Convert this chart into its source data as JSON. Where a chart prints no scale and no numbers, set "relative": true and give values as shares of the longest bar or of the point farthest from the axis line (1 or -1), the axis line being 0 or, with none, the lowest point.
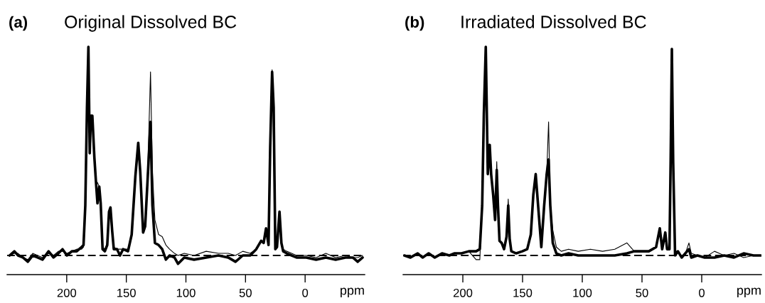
{
  "chart_data": [
    {
      "type": "line",
      "title": "Original Dissolved BC",
      "annotations": [
        "(a)"
      ],
      "xlabel": "ppm",
      "relative": true,
      "xlim": [
        250,
        -50
      ],
      "xticks": [
        200,
        150,
        100,
        50,
        0
      ],
      "grid": false,
      "legend": false,
      "ref_lines": [
        {
          "axis": "y",
          "value": 0,
          "label": null,
          "color": "#000000",
          "line_style": "dashed"
        }
      ],
      "series": [
        {
          "color": "#000000",
          "x": [
            247.9,
            243.9,
            240.8,
            236.7,
            232.6,
            228.5,
            224.4,
            220.3,
            215.2,
            211.1,
            207.0,
            203.5,
            199.8,
            195.7,
            191.6,
            187.5,
            185.9,
            184.4,
            183.0,
            181.8,
            180.7,
            179.7,
            178.5,
            176.8,
            175.2,
            174.2,
            172.7,
            171.5,
            169.9,
            168.0,
            166.0,
            164.5,
            163.3,
            161.9,
            160.5,
            157.8,
            155.3,
            152.7,
            148.6,
            145.5,
            142.4,
            140.0,
            138.3,
            135.9,
            134.2,
            131.8,
            129.7,
            128.1,
            126.0,
            122.9,
            119.9,
            116.8,
            113.7,
            109.6,
            106.6,
            101.4,
            93.2,
            83.0,
            72.7,
            64.5,
            58.4,
            52.3,
            46.1,
            41.0,
            36.9,
            34.8,
            32.8,
            30.7,
            29.3,
            27.7,
            26.4,
            25.0,
            23.6,
            21.5,
            19.9,
            18.4,
            15.4,
            11.3,
            7.2,
            -1.0,
            -9.2,
            -17.4,
            -25.6,
            -33.8,
            -40.0,
            -44.1,
            -48.2
          ],
          "values": [
            0.0,
            0.01,
            0.01,
            -0.01,
            -0.02,
            0.01,
            0.0,
            -0.01,
            0.02,
            0.0,
            0.02,
            0.02,
            0.01,
            0.02,
            0.03,
            0.03,
            0.04,
            0.22,
            0.7,
            0.98,
            0.5,
            0.66,
            0.66,
            0.48,
            0.35,
            0.35,
            0.33,
            0.26,
            0.04,
            0.03,
            0.06,
            0.21,
            0.23,
            0.12,
            0.04,
            0.03,
            0.03,
            0.03,
            0.03,
            0.1,
            0.38,
            0.54,
            0.4,
            0.12,
            0.16,
            0.45,
            0.88,
            0.4,
            0.17,
            0.1,
            0.09,
            0.05,
            0.03,
            0.01,
            0.0,
            0.01,
            0.0,
            0.02,
            0.01,
            0.01,
            0.0,
            0.02,
            0.01,
            0.03,
            0.07,
            0.06,
            0.13,
            0.05,
            0.52,
            0.89,
            0.71,
            0.03,
            0.04,
            0.21,
            0.06,
            0.03,
            0.02,
            0.01,
            0.0,
            0.0,
            -0.01,
            0.01,
            -0.01,
            0.0,
            -0.01,
            -0.01,
            0.0
          ]
        },
        {
          "color": "#000000",
          "x": [
            247.9,
            243.9,
            240.8,
            236.7,
            232.6,
            228.5,
            224.4,
            220.3,
            215.2,
            211.1,
            207.0,
            203.5,
            199.8,
            195.7,
            191.6,
            187.5,
            185.9,
            184.4,
            183.0,
            181.8,
            180.7,
            179.7,
            178.5,
            176.8,
            175.2,
            174.2,
            172.7,
            171.5,
            169.9,
            168.0,
            166.0,
            164.5,
            163.3,
            161.9,
            160.5,
            157.8,
            155.3,
            152.7,
            148.6,
            145.5,
            142.4,
            140.0,
            138.3,
            135.9,
            134.2,
            131.8,
            129.7,
            128.1,
            126.0,
            122.9,
            119.9,
            116.8,
            113.7,
            109.6,
            106.6,
            101.4,
            93.2,
            83.0,
            72.7,
            64.5,
            58.4,
            52.3,
            46.1,
            41.0,
            36.9,
            34.8,
            32.8,
            30.7,
            29.3,
            27.7,
            26.4,
            25.0,
            23.6,
            21.5,
            19.9,
            18.4,
            15.4,
            11.3,
            7.2,
            -1.0,
            -9.2,
            -17.4,
            -25.6,
            -33.8,
            -40.0,
            -44.1,
            -48.2
          ],
          "values": [
            0.0,
            0.02,
            0.0,
            -0.01,
            -0.03,
            0.0,
            -0.01,
            -0.02,
            0.02,
            -0.01,
            0.01,
            0.03,
            0.0,
            0.02,
            0.02,
            0.04,
            0.05,
            0.24,
            0.71,
            1.0,
            0.49,
            0.67,
            0.67,
            0.47,
            0.33,
            0.25,
            0.33,
            0.25,
            0.03,
            0.02,
            0.05,
            0.21,
            0.23,
            0.12,
            0.03,
            0.03,
            0.0,
            0.03,
            0.02,
            0.1,
            0.38,
            0.54,
            0.4,
            0.11,
            0.14,
            0.4,
            0.64,
            0.24,
            0.06,
            0.05,
            0.03,
            -0.02,
            0.0,
            -0.01,
            -0.04,
            -0.01,
            -0.02,
            -0.01,
            0.0,
            -0.01,
            -0.03,
            0.0,
            0.0,
            0.03,
            0.07,
            0.06,
            0.13,
            0.05,
            0.52,
            0.88,
            0.71,
            0.03,
            0.04,
            0.21,
            0.06,
            0.02,
            0.01,
            0.0,
            -0.01,
            -0.01,
            -0.02,
            -0.01,
            -0.02,
            -0.01,
            -0.01,
            -0.03,
            -0.01
          ]
        }
      ]
    },
    {
      "type": "line",
      "title": "Irradiated Dissolved BC",
      "annotations": [
        "(b)"
      ],
      "xlabel": "ppm",
      "relative": true,
      "xlim": [
        250,
        -50
      ],
      "xticks": [
        200,
        150,
        100,
        50,
        0
      ],
      "grid": false,
      "legend": false,
      "ref_lines": [
        {
          "axis": "y",
          "value": 0,
          "label": null,
          "color": "#000000",
          "line_style": "dashed"
        }
      ],
      "series": [
        {
          "color": "#000000",
          "x": [
            249.0,
            243.9,
            237.8,
            233.7,
            228.6,
            223.5,
            217.4,
            211.3,
            207.2,
            201.1,
            195.0,
            188.9,
            185.8,
            183.8,
            182.4,
            180.8,
            179.1,
            177.5,
            176.3,
            174.6,
            173.0,
            171.6,
            170.6,
            169.3,
            167.5,
            165.5,
            163.4,
            162.0,
            160.8,
            159.4,
            155.3,
            150.2,
            146.1,
            143.1,
            141.0,
            139.0,
            137.0,
            134.3,
            131.9,
            129.8,
            128.2,
            126.8,
            124.7,
            121.7,
            117.6,
            111.5,
            103.4,
            93.2,
            83.0,
            72.8,
            62.6,
            56.5,
            50.4,
            44.3,
            41.2,
            38.2,
            35.1,
            33.1,
            30.5,
            29.0,
            27.0,
            26.0,
            25.0,
            23.9,
            22.3,
            19.9,
            16.8,
            13.7,
            10.7,
            8.7,
            3.6,
            -2.5,
            -10.7,
            -18.8,
            -27.0,
            -35.1,
            -43.3,
            -49.4
          ],
          "values": [
            0.0,
            -0.01,
            0.01,
            -0.01,
            0.01,
            -0.01,
            0.01,
            0.0,
            0.01,
            0.01,
            0.02,
            -0.02,
            -0.02,
            0.24,
            0.68,
            0.98,
            0.39,
            0.53,
            0.39,
            0.29,
            0.17,
            0.45,
            0.24,
            0.07,
            0.06,
            0.03,
            0.09,
            0.27,
            0.08,
            0.02,
            0.01,
            0.02,
            0.03,
            0.1,
            0.29,
            0.39,
            0.24,
            0.04,
            0.24,
            0.39,
            0.64,
            0.24,
            0.12,
            0.04,
            0.02,
            0.03,
            0.02,
            0.03,
            0.02,
            0.03,
            0.06,
            0.02,
            0.02,
            0.02,
            0.03,
            0.04,
            0.13,
            0.03,
            0.11,
            0.03,
            0.03,
            0.46,
            0.99,
            0.45,
            0.02,
            0.02,
            -0.01,
            0.01,
            0.06,
            0.01,
            0.0,
            -0.01,
            0.02,
            0.0,
            0.01,
            -0.01,
            0.0,
            0.0
          ]
        },
        {
          "color": "#000000",
          "x": [
            249.0,
            243.9,
            237.8,
            233.7,
            228.6,
            223.5,
            217.4,
            211.3,
            207.2,
            201.1,
            195.0,
            188.9,
            185.8,
            183.8,
            182.4,
            180.8,
            179.1,
            177.5,
            176.3,
            174.6,
            173.0,
            171.6,
            170.6,
            169.3,
            167.5,
            165.5,
            163.4,
            162.0,
            160.8,
            159.4,
            155.3,
            150.2,
            146.1,
            143.1,
            141.0,
            139.0,
            137.0,
            134.3,
            131.9,
            129.8,
            128.2,
            126.8,
            124.7,
            121.7,
            117.6,
            111.5,
            103.4,
            93.2,
            83.0,
            72.8,
            62.6,
            56.5,
            50.4,
            44.3,
            41.2,
            38.2,
            35.1,
            33.1,
            30.5,
            29.0,
            27.0,
            26.0,
            25.0,
            23.9,
            22.3,
            19.9,
            16.8,
            13.7,
            10.7,
            8.7,
            3.6,
            -2.5,
            -10.7,
            -18.8,
            -27.0,
            -35.1,
            -43.3,
            -49.4
          ],
          "values": [
            0.0,
            -0.01,
            0.01,
            -0.01,
            0.01,
            -0.01,
            0.01,
            0.0,
            0.01,
            0.01,
            0.02,
            0.02,
            0.03,
            0.24,
            0.68,
            1.0,
            0.39,
            0.53,
            0.39,
            0.29,
            0.17,
            0.41,
            0.24,
            0.07,
            0.06,
            0.03,
            0.09,
            0.24,
            0.08,
            0.02,
            0.01,
            0.02,
            0.03,
            0.1,
            0.29,
            0.39,
            0.24,
            0.04,
            0.24,
            0.39,
            0.46,
            0.24,
            0.06,
            0.01,
            0.0,
            0.01,
            0.0,
            0.0,
            0.0,
            0.0,
            0.01,
            0.02,
            0.02,
            0.02,
            0.03,
            0.04,
            0.13,
            0.03,
            0.11,
            0.03,
            0.03,
            0.46,
            0.99,
            0.45,
            0.0,
            0.02,
            -0.01,
            0.01,
            0.03,
            -0.01,
            0.0,
            -0.01,
            -0.01,
            0.0,
            -0.01,
            0.01,
            0.0,
            0.0
          ]
        }
      ]
    }
  ]
}
